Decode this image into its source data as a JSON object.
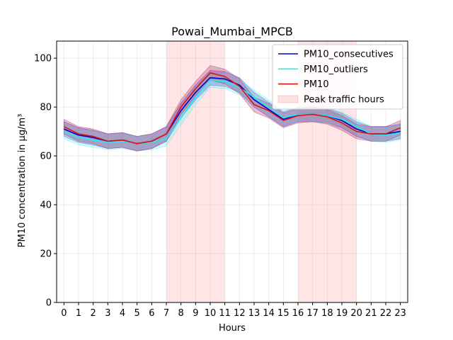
{
  "chart_data": {
    "type": "line",
    "title": "Powai_Mumbai_MPCB",
    "xlabel": "Hours",
    "ylabel": "PM10 concentration in µg/m³",
    "x": [
      0,
      1,
      2,
      3,
      4,
      5,
      6,
      7,
      8,
      9,
      10,
      11,
      12,
      13,
      14,
      15,
      16,
      17,
      18,
      19,
      20,
      21,
      22,
      23
    ],
    "x_ticks": [
      "0",
      "1",
      "2",
      "3",
      "4",
      "5",
      "6",
      "7",
      "8",
      "9",
      "10",
      "11",
      "12",
      "13",
      "14",
      "15",
      "16",
      "17",
      "18",
      "19",
      "20",
      "21",
      "22",
      "23"
    ],
    "xlim": [
      -0.5,
      23.5
    ],
    "ylim": [
      0,
      107
    ],
    "y_ticks": [
      0,
      20,
      40,
      60,
      80,
      100
    ],
    "grid": true,
    "legend_position": "top-right",
    "peak_traffic_hours": [
      [
        7,
        11
      ],
      [
        16,
        20
      ]
    ],
    "peak_label": "Peak traffic hours",
    "series": [
      {
        "name": "PM10_consecutives",
        "color": "#0000cc",
        "band_color": "#3333cc",
        "values": [
          71,
          68.5,
          67.5,
          66,
          66.5,
          65,
          66,
          69,
          78.5,
          86,
          92,
          91.5,
          89,
          83,
          79,
          75,
          77,
          77,
          76.5,
          74.5,
          71,
          69,
          69,
          70
        ],
        "lower": [
          68,
          65.5,
          64.5,
          63,
          63.5,
          62,
          63,
          66,
          75.5,
          83,
          89,
          88.5,
          86,
          80,
          76,
          72,
          74,
          74,
          73.5,
          71.5,
          68,
          66,
          66,
          67
        ],
        "upper": [
          74,
          71.5,
          70.5,
          69,
          69.5,
          68,
          69,
          72,
          81.5,
          89,
          95,
          94.5,
          92,
          86,
          82,
          78,
          80,
          80,
          79.5,
          77.5,
          74,
          72,
          72,
          73
        ]
      },
      {
        "name": "PM10_outliers",
        "color": "#22ecec",
        "band_color": "#66eeee",
        "values": [
          70,
          67.5,
          66.5,
          65.5,
          66,
          65,
          65.5,
          67,
          75.5,
          84,
          91,
          90.5,
          88,
          84,
          80,
          75.5,
          77,
          77,
          76.5,
          75,
          72,
          69,
          68.5,
          69.5
        ],
        "lower": [
          67,
          64.5,
          63.5,
          62.5,
          63,
          62,
          62.5,
          64,
          72.5,
          81,
          88,
          87.5,
          85,
          81,
          77,
          72.5,
          74,
          74,
          73.5,
          72,
          69,
          66,
          65.5,
          66.5
        ],
        "upper": [
          73,
          70.5,
          69.5,
          68.5,
          69,
          68,
          68.5,
          70,
          78.5,
          87,
          94,
          93.5,
          91,
          87,
          83,
          78.5,
          80,
          80,
          79.5,
          78,
          75,
          72,
          71.5,
          72.5
        ]
      },
      {
        "name": "PM10",
        "color": "#dd1111",
        "band_color": "#aa3366",
        "values": [
          72,
          69,
          68,
          66,
          66.5,
          65,
          66,
          69,
          80,
          87.5,
          94,
          92.5,
          88.5,
          81,
          78.5,
          74.5,
          76.5,
          77,
          76,
          73.5,
          70,
          69,
          69,
          71.5
        ],
        "lower": [
          69,
          66,
          65,
          63,
          63.5,
          62,
          63,
          66,
          77,
          84.5,
          91,
          89.5,
          85.5,
          78,
          75.5,
          71.5,
          73.5,
          74,
          73,
          70.5,
          67,
          66,
          66,
          68.5
        ],
        "upper": [
          75,
          72,
          71,
          69,
          69.5,
          68,
          69,
          72,
          83,
          90.5,
          97,
          95.5,
          91.5,
          84,
          81.5,
          77.5,
          79.5,
          80,
          79,
          76.5,
          73,
          72,
          72,
          74.5
        ]
      }
    ]
  }
}
